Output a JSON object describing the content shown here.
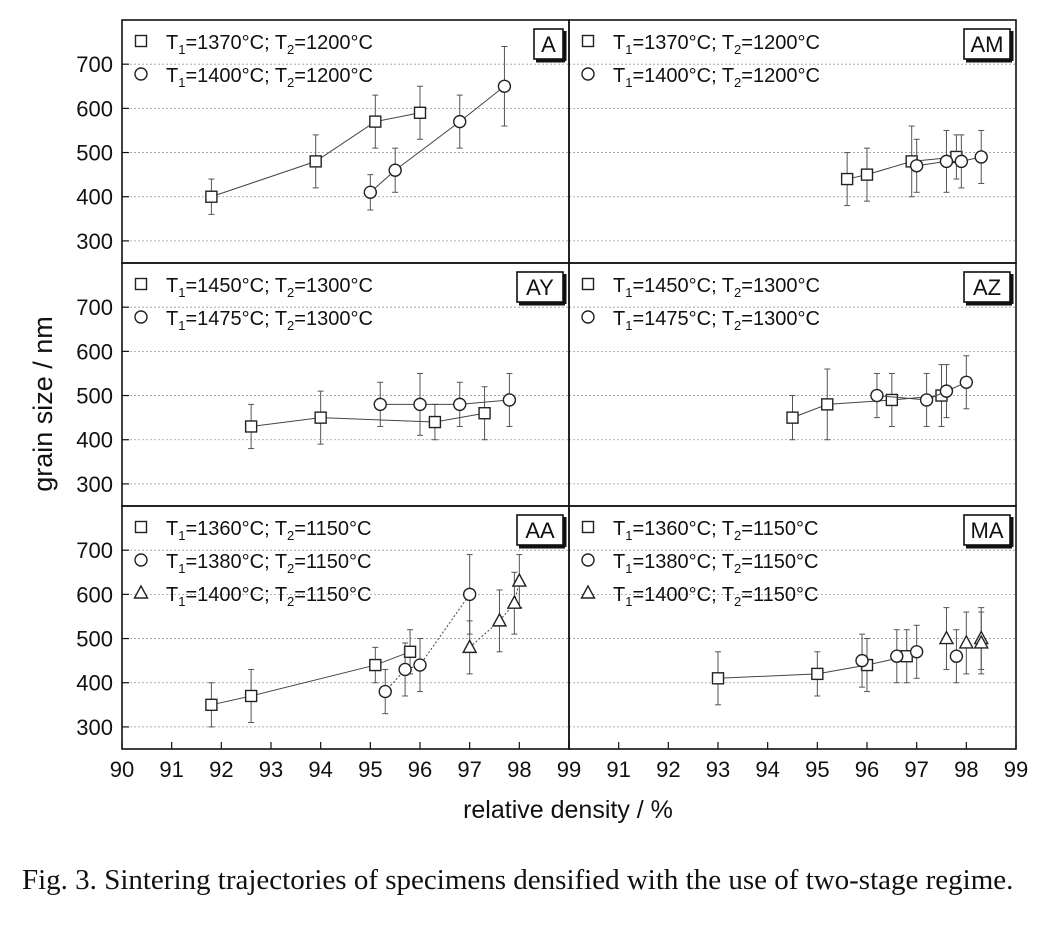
{
  "figure": {
    "y_label": "grain size / nm",
    "x_label": "relative density / %",
    "caption_label": "Fig. 3.",
    "caption_text": "Sintering trajectories of specimens densified with the use of two-stage regime."
  },
  "chart_data": [
    {
      "type": "scatter",
      "title": "A",
      "xlim": [
        90,
        99
      ],
      "ylim": [
        250,
        800
      ],
      "x_ticks": [
        90,
        91,
        92,
        93,
        94,
        95,
        96,
        97,
        98,
        99
      ],
      "y_ticks": [
        300,
        400,
        500,
        600,
        700
      ],
      "series": [
        {
          "name": "T1=1370°C; T2=1200°C",
          "marker": "square",
          "line": "solid",
          "x": [
            91.8,
            93.9,
            95.1,
            96.0
          ],
          "y": [
            400,
            480,
            570,
            590
          ],
          "err": [
            40,
            60,
            60,
            60
          ]
        },
        {
          "name": "T1=1400°C; T2=1200°C",
          "marker": "circle",
          "line": "solid",
          "x": [
            95.0,
            95.5,
            96.8,
            97.7
          ],
          "y": [
            410,
            460,
            570,
            650
          ],
          "err": [
            40,
            50,
            60,
            90
          ]
        }
      ]
    },
    {
      "type": "scatter",
      "title": "AM",
      "xlim": [
        90,
        99
      ],
      "ylim": [
        250,
        800
      ],
      "x_ticks": [
        90,
        91,
        92,
        93,
        94,
        95,
        96,
        97,
        98,
        99
      ],
      "y_ticks": [
        300,
        400,
        500,
        600,
        700
      ],
      "series": [
        {
          "name": "T1=1370°C; T2=1200°C",
          "marker": "square",
          "line": "solid",
          "x": [
            95.6,
            96.0,
            96.9,
            97.8
          ],
          "y": [
            440,
            450,
            480,
            490
          ],
          "err": [
            60,
            60,
            80,
            50
          ]
        },
        {
          "name": "T1=1400°C; T2=1200°C",
          "marker": "circle",
          "line": "solid",
          "x": [
            97.0,
            97.6,
            97.9,
            98.3
          ],
          "y": [
            470,
            480,
            480,
            490
          ],
          "err": [
            60,
            70,
            60,
            60
          ]
        }
      ]
    },
    {
      "type": "scatter",
      "title": "AY",
      "xlim": [
        90,
        99
      ],
      "ylim": [
        250,
        800
      ],
      "x_ticks": [
        90,
        91,
        92,
        93,
        94,
        95,
        96,
        97,
        98,
        99
      ],
      "y_ticks": [
        300,
        400,
        500,
        600,
        700
      ],
      "series": [
        {
          "name": "T1=1450°C; T2=1300°C",
          "marker": "square",
          "line": "solid",
          "x": [
            92.6,
            94.0,
            96.3,
            97.3
          ],
          "y": [
            430,
            450,
            440,
            460
          ],
          "err": [
            50,
            60,
            40,
            60
          ]
        },
        {
          "name": "T1=1475°C; T2=1300°C",
          "marker": "circle",
          "line": "solid",
          "x": [
            95.2,
            96.0,
            96.8,
            97.8
          ],
          "y": [
            480,
            480,
            480,
            490
          ],
          "err": [
            50,
            70,
            50,
            60
          ]
        }
      ]
    },
    {
      "type": "scatter",
      "title": "AZ",
      "xlim": [
        90,
        99
      ],
      "ylim": [
        250,
        800
      ],
      "x_ticks": [
        90,
        91,
        92,
        93,
        94,
        95,
        96,
        97,
        98,
        99
      ],
      "y_ticks": [
        300,
        400,
        500,
        600,
        700
      ],
      "series": [
        {
          "name": "T1=1450°C; T2=1300°C",
          "marker": "square",
          "line": "solid",
          "x": [
            94.5,
            95.2,
            96.5,
            97.5
          ],
          "y": [
            450,
            480,
            490,
            500
          ],
          "err": [
            50,
            80,
            60,
            70
          ]
        },
        {
          "name": "T1=1475°C; T2=1300°C",
          "marker": "circle",
          "line": "solid",
          "x": [
            96.2,
            97.2,
            97.6,
            98.0
          ],
          "y": [
            500,
            490,
            510,
            530
          ],
          "err": [
            50,
            60,
            60,
            60
          ]
        }
      ]
    },
    {
      "type": "scatter",
      "title": "AA",
      "xlim": [
        90,
        99
      ],
      "ylim": [
        250,
        800
      ],
      "x_ticks": [
        90,
        91,
        92,
        93,
        94,
        95,
        96,
        97,
        98,
        99
      ],
      "y_ticks": [
        300,
        400,
        500,
        600,
        700
      ],
      "series": [
        {
          "name": "T1=1360°C; T2=1150°C",
          "marker": "square",
          "line": "solid",
          "x": [
            91.8,
            92.6,
            95.1,
            95.8
          ],
          "y": [
            350,
            370,
            440,
            470
          ],
          "err": [
            50,
            60,
            40,
            50
          ]
        },
        {
          "name": "T1=1380°C; T2=1150°C",
          "marker": "circle",
          "line": "dotted",
          "x": [
            95.3,
            95.7,
            96.0,
            97.0
          ],
          "y": [
            380,
            430,
            440,
            600
          ],
          "err": [
            50,
            60,
            60,
            90
          ]
        },
        {
          "name": "T1=1400°C; T2=1150°C",
          "marker": "triangle",
          "line": "dotted",
          "x": [
            97.0,
            97.6,
            97.9,
            98.0
          ],
          "y": [
            480,
            540,
            580,
            630
          ],
          "err": [
            60,
            70,
            70,
            60
          ]
        }
      ]
    },
    {
      "type": "scatter",
      "title": "MA",
      "xlim": [
        90,
        99
      ],
      "ylim": [
        250,
        800
      ],
      "x_ticks": [
        90,
        91,
        92,
        93,
        94,
        95,
        96,
        97,
        98,
        99
      ],
      "y_ticks": [
        300,
        400,
        500,
        600,
        700
      ],
      "series": [
        {
          "name": "T1=1360°C; T2=1150°C",
          "marker": "square",
          "line": "solid",
          "x": [
            93.0,
            95.0,
            96.0,
            96.8
          ],
          "y": [
            410,
            420,
            440,
            460
          ],
          "err": [
            60,
            50,
            60,
            60
          ]
        },
        {
          "name": "T1=1380°C; T2=1150°C",
          "marker": "circle",
          "line": "none",
          "x": [
            95.9,
            96.6,
            97.0,
            97.8
          ],
          "y": [
            450,
            460,
            470,
            460
          ],
          "err": [
            60,
            60,
            60,
            60
          ]
        },
        {
          "name": "T1=1400°C; T2=1150°C",
          "marker": "triangle",
          "line": "none",
          "x": [
            97.6,
            98.0,
            98.3,
            98.3
          ],
          "y": [
            500,
            490,
            500,
            490
          ],
          "err": [
            70,
            70,
            70,
            70
          ]
        }
      ]
    }
  ]
}
